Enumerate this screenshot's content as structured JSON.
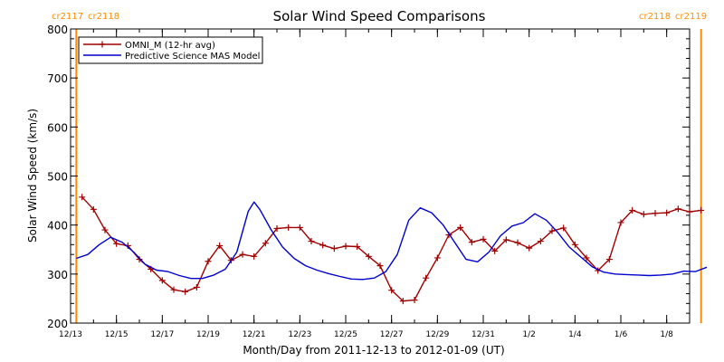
{
  "chart_data": {
    "type": "line",
    "title": "Solar Wind Speed Comparisons",
    "xlabel": "Month/Day from 2011-12-13 to 2012-01-09 (UT)",
    "ylabel": "Solar Wind Speed (km/s)",
    "xlim": [
      "2011-12-13",
      "2012-01-09"
    ],
    "ylim": [
      200,
      800
    ],
    "x_ticks": [
      {
        "date": "2011-12-13",
        "label": "12/13"
      },
      {
        "date": "2011-12-15",
        "label": "12/15"
      },
      {
        "date": "2011-12-17",
        "label": "12/17"
      },
      {
        "date": "2011-12-19",
        "label": "12/19"
      },
      {
        "date": "2011-12-21",
        "label": "12/21"
      },
      {
        "date": "2011-12-23",
        "label": "12/23"
      },
      {
        "date": "2011-12-25",
        "label": "12/25"
      },
      {
        "date": "2011-12-27",
        "label": "12/27"
      },
      {
        "date": "2011-12-29",
        "label": "12/29"
      },
      {
        "date": "2011-12-31",
        "label": "12/31"
      },
      {
        "date": "2012-01-02",
        "label": "1/2"
      },
      {
        "date": "2012-01-04",
        "label": "1/4"
      },
      {
        "date": "2012-01-06",
        "label": "1/6"
      },
      {
        "date": "2012-01-08",
        "label": "1/8"
      }
    ],
    "y_ticks": [
      200,
      300,
      400,
      500,
      600,
      700,
      800
    ],
    "legend": {
      "position": "top-left",
      "entries": [
        "OMNI_M (12-hr avg)",
        "Predictive Science MAS Model"
      ]
    },
    "carrington_markers": [
      {
        "date": "2011-12-13T06:00",
        "label_left": "cr2117",
        "label_right": "cr2118",
        "color": "#ff8c00",
        "side": "left"
      },
      {
        "date": "2012-01-09T12:00",
        "label_left": "cr2118",
        "label_right": "cr2119",
        "color": "#ff8c00",
        "side": "right"
      }
    ],
    "series": [
      {
        "name": "OMNI_M (12-hr avg)",
        "color": "#a00000",
        "marker": "plus",
        "points": [
          [
            "2011-12-13T12:00",
            457
          ],
          [
            "2011-12-14T00:00",
            432
          ],
          [
            "2011-12-14T12:00",
            390
          ],
          [
            "2011-12-15T00:00",
            362
          ],
          [
            "2011-12-15T12:00",
            358
          ],
          [
            "2011-12-16T00:00",
            330
          ],
          [
            "2011-12-16T12:00",
            310
          ],
          [
            "2011-12-17T00:00",
            287
          ],
          [
            "2011-12-17T12:00",
            268
          ],
          [
            "2011-12-18T00:00",
            264
          ],
          [
            "2011-12-18T12:00",
            273
          ],
          [
            "2011-12-19T00:00",
            326
          ],
          [
            "2011-12-19T12:00",
            358
          ],
          [
            "2011-12-20T00:00",
            328
          ],
          [
            "2011-12-20T12:00",
            340
          ],
          [
            "2011-12-21T00:00",
            336
          ],
          [
            "2011-12-21T12:00",
            363
          ],
          [
            "2011-12-22T00:00",
            393
          ],
          [
            "2011-12-22T12:00",
            395
          ],
          [
            "2011-12-23T00:00",
            395
          ],
          [
            "2011-12-23T12:00",
            367
          ],
          [
            "2011-12-24T00:00",
            359
          ],
          [
            "2011-12-24T12:00",
            352
          ],
          [
            "2011-12-25T00:00",
            357
          ],
          [
            "2011-12-25T12:00",
            356
          ],
          [
            "2011-12-26T00:00",
            336
          ],
          [
            "2011-12-26T12:00",
            317
          ],
          [
            "2011-12-27T00:00",
            267
          ],
          [
            "2011-12-27T12:00",
            245
          ],
          [
            "2011-12-28T00:00",
            247
          ],
          [
            "2011-12-28T12:00",
            292
          ],
          [
            "2011-12-29T00:00",
            333
          ],
          [
            "2011-12-29T12:00",
            380
          ],
          [
            "2011-12-30T00:00",
            395
          ],
          [
            "2011-12-30T12:00",
            365
          ],
          [
            "2011-12-31T00:00",
            371
          ],
          [
            "2011-12-31T12:00",
            347
          ],
          [
            "2012-01-01T00:00",
            370
          ],
          [
            "2012-01-01T12:00",
            364
          ],
          [
            "2012-01-02T00:00",
            353
          ],
          [
            "2012-01-02T12:00",
            367
          ],
          [
            "2012-01-03T00:00",
            388
          ],
          [
            "2012-01-03T12:00",
            394
          ],
          [
            "2012-01-04T00:00",
            360
          ],
          [
            "2012-01-04T12:00",
            333
          ],
          [
            "2012-01-05T00:00",
            307
          ],
          [
            "2012-01-05T12:00",
            330
          ],
          [
            "2012-01-06T00:00",
            405
          ],
          [
            "2012-01-06T12:00",
            430
          ],
          [
            "2012-01-07T00:00",
            422
          ],
          [
            "2012-01-07T12:00",
            424
          ],
          [
            "2012-01-08T00:00",
            425
          ],
          [
            "2012-01-08T12:00",
            433
          ],
          [
            "2012-01-09T00:00",
            427
          ],
          [
            "2012-01-09T12:00",
            430
          ]
        ]
      },
      {
        "name": "Predictive Science MAS Model",
        "color": "#0000cc",
        "marker": "none",
        "points": [
          [
            "2011-12-13T06:00",
            332
          ],
          [
            "2011-12-13T18:00",
            340
          ],
          [
            "2011-12-14T06:00",
            360
          ],
          [
            "2011-12-14T18:00",
            375
          ],
          [
            "2011-12-15T06:00",
            365
          ],
          [
            "2011-12-15T18:00",
            345
          ],
          [
            "2011-12-16T06:00",
            320
          ],
          [
            "2011-12-16T18:00",
            308
          ],
          [
            "2011-12-17T06:00",
            305
          ],
          [
            "2011-12-17T18:00",
            297
          ],
          [
            "2011-12-18T06:00",
            291
          ],
          [
            "2011-12-18T18:00",
            291
          ],
          [
            "2011-12-19T06:00",
            298
          ],
          [
            "2011-12-19T18:00",
            310
          ],
          [
            "2011-12-20T06:00",
            345
          ],
          [
            "2011-12-20T18:00",
            428
          ],
          [
            "2011-12-21T00:00",
            447
          ],
          [
            "2011-12-21T06:00",
            432
          ],
          [
            "2011-12-21T18:00",
            390
          ],
          [
            "2011-12-22T06:00",
            355
          ],
          [
            "2011-12-22T18:00",
            332
          ],
          [
            "2011-12-23T06:00",
            317
          ],
          [
            "2011-12-23T18:00",
            308
          ],
          [
            "2011-12-24T06:00",
            301
          ],
          [
            "2011-12-24T18:00",
            295
          ],
          [
            "2011-12-25T06:00",
            290
          ],
          [
            "2011-12-25T18:00",
            289
          ],
          [
            "2011-12-26T06:00",
            292
          ],
          [
            "2011-12-26T18:00",
            305
          ],
          [
            "2011-12-27T06:00",
            340
          ],
          [
            "2011-12-27T18:00",
            410
          ],
          [
            "2011-12-28T06:00",
            435
          ],
          [
            "2011-12-28T18:00",
            425
          ],
          [
            "2011-12-29T06:00",
            400
          ],
          [
            "2011-12-29T18:00",
            365
          ],
          [
            "2011-12-30T06:00",
            330
          ],
          [
            "2011-12-30T18:00",
            325
          ],
          [
            "2011-12-31T06:00",
            345
          ],
          [
            "2011-12-31T18:00",
            378
          ],
          [
            "2012-01-01T06:00",
            398
          ],
          [
            "2012-01-01T18:00",
            405
          ],
          [
            "2012-01-02T06:00",
            423
          ],
          [
            "2012-01-02T18:00",
            410
          ],
          [
            "2012-01-03T06:00",
            385
          ],
          [
            "2012-01-03T18:00",
            355
          ],
          [
            "2012-01-04T06:00",
            335
          ],
          [
            "2012-01-04T18:00",
            315
          ],
          [
            "2012-01-05T06:00",
            304
          ],
          [
            "2012-01-05T18:00",
            300
          ],
          [
            "2012-01-06T06:00",
            299
          ],
          [
            "2012-01-06T18:00",
            298
          ],
          [
            "2012-01-07T06:00",
            297
          ],
          [
            "2012-01-07T18:00",
            298
          ],
          [
            "2012-01-08T06:00",
            300
          ],
          [
            "2012-01-08T18:00",
            306
          ],
          [
            "2012-01-09T06:00",
            305
          ],
          [
            "2012-01-09T18:00",
            314
          ]
        ]
      }
    ]
  }
}
